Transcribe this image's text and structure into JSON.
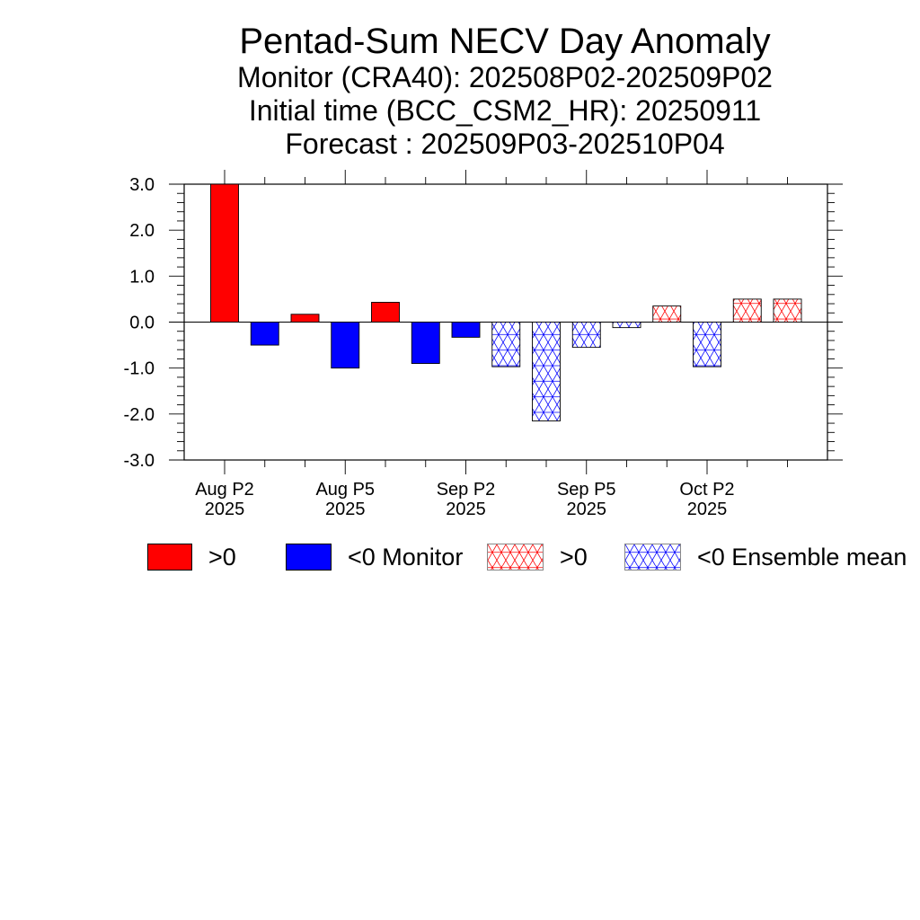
{
  "chart_data": {
    "type": "bar",
    "title": "Pentad-Sum NECV Day Anomaly",
    "subtitles": [
      "Monitor (CRA40): 202508P02-202509P02",
      "Initial time (BCC_CSM2_HR): 20250911",
      "Forecast : 202509P03-202510P04"
    ],
    "ylim": [
      -3.0,
      3.0
    ],
    "yticks": [
      "3.0",
      "2.0",
      "1.0",
      "0.0",
      "-1.0",
      "-2.0",
      "-3.0"
    ],
    "xtick_labels": [
      {
        "label": "Aug P2",
        "year": "2025",
        "index": 0
      },
      {
        "label": "Aug P5",
        "year": "2025",
        "index": 3
      },
      {
        "label": "Sep P2",
        "year": "2025",
        "index": 6
      },
      {
        "label": "Sep P5",
        "year": "2025",
        "index": 9
      },
      {
        "label": "Oct P2",
        "year": "2025",
        "index": 12
      }
    ],
    "series": [
      {
        "name": "Monitor",
        "kind": "solid",
        "values": [
          3.0,
          -0.5,
          0.17,
          -1.0,
          0.43,
          -0.9,
          -0.33
        ]
      },
      {
        "name": "Ensemble mean",
        "kind": "hatched",
        "values": [
          -0.97,
          -2.15,
          -0.55,
          -0.12,
          0.35,
          -0.97,
          0.5,
          0.5
        ]
      }
    ],
    "colors": {
      "positive": "#ff0000",
      "negative": "#0000ff"
    }
  },
  "legend": {
    "items": [
      {
        "text": ">0",
        "style": "solid",
        "color": "#ff0000"
      },
      {
        "text": "<0 Monitor",
        "style": "solid",
        "color": "#0000ff"
      },
      {
        "text": ">0",
        "style": "hatched",
        "color": "#ff0000"
      },
      {
        "text": "<0 Ensemble mean",
        "style": "hatched",
        "color": "#0000ff"
      }
    ]
  }
}
